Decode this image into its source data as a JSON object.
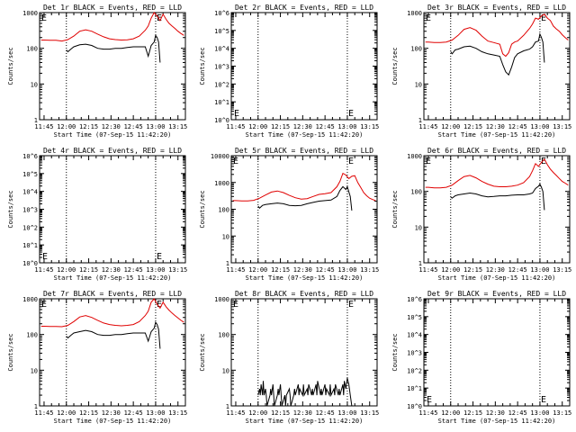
{
  "figure": {
    "xlabel": "Start Time (07-Sep-15 11:42:20)",
    "ylabel": "Counts/sec",
    "xticks": [
      "11:45",
      "12:00",
      "12:15",
      "12:30",
      "12:45",
      "13:00",
      "13:15"
    ],
    "xrange_min": [
      -3,
      95
    ],
    "vlines_min": [
      15,
      75
    ],
    "e_marker": "E",
    "colors": {
      "events": "#000000",
      "lld": "#e00000"
    }
  },
  "chart_data": [
    {
      "type": "line",
      "title": "Det 1r BLACK = Events, RED = LLD",
      "log_scale": true,
      "ylim": [
        1,
        1000
      ],
      "ytick_labels": [
        "1",
        "10",
        "100",
        "1000"
      ],
      "grid": false,
      "series": [
        {
          "name": "LLD",
          "color": "#e00000",
          "x": [
            -2,
            0,
            4,
            8,
            12,
            16,
            20,
            24,
            28,
            32,
            36,
            40,
            44,
            48,
            52,
            56,
            60,
            64,
            68,
            70,
            72,
            74,
            76,
            78,
            80,
            82,
            84,
            86,
            88,
            90,
            92,
            94
          ],
          "y": [
            170,
            170,
            168,
            168,
            160,
            175,
            220,
            300,
            330,
            300,
            250,
            210,
            185,
            175,
            170,
            172,
            185,
            220,
            320,
            420,
            700,
            1000,
            800,
            600,
            900,
            650,
            500,
            420,
            360,
            300,
            260,
            230
          ]
        },
        {
          "name": "Events",
          "color": "#000000",
          "x": [
            15,
            16,
            18,
            20,
            24,
            28,
            32,
            36,
            40,
            44,
            48,
            52,
            56,
            60,
            64,
            68,
            70,
            72,
            74,
            75,
            76,
            77,
            78
          ],
          "y": [
            90,
            80,
            95,
            110,
            125,
            130,
            120,
            100,
            95,
            95,
            100,
            100,
            105,
            110,
            110,
            110,
            60,
            120,
            150,
            230,
            200,
            150,
            40
          ]
        }
      ]
    },
    {
      "type": "line",
      "title": "Det 2r BLACK = Events, RED = LLD",
      "log_scale": true,
      "ylim": [
        1,
        1000000
      ],
      "ytick_labels": [
        "10^0",
        "10^1",
        "10^2",
        "10^3",
        "10^4",
        "10^5",
        "10^6"
      ],
      "grid": false,
      "series": []
    },
    {
      "type": "line",
      "title": "Det 3r BLACK = Events, RED = LLD",
      "log_scale": true,
      "ylim": [
        1,
        1000
      ],
      "ytick_labels": [
        "1",
        "10",
        "100",
        "1000"
      ],
      "grid": false,
      "series": [
        {
          "name": "LLD",
          "color": "#e00000",
          "x": [
            -2,
            0,
            4,
            8,
            12,
            16,
            20,
            24,
            28,
            32,
            36,
            40,
            44,
            48,
            50,
            52,
            54,
            56,
            58,
            60,
            64,
            68,
            70,
            72,
            74,
            76,
            78,
            80,
            82,
            84,
            86,
            88,
            90,
            92,
            94
          ],
          "y": [
            150,
            150,
            145,
            145,
            150,
            170,
            230,
            340,
            380,
            320,
            220,
            160,
            145,
            130,
            70,
            60,
            75,
            130,
            150,
            160,
            230,
            360,
            480,
            700,
            650,
            800,
            900,
            700,
            600,
            420,
            350,
            300,
            240,
            200,
            170
          ]
        },
        {
          "name": "Events",
          "color": "#000000",
          "x": [
            15,
            16,
            18,
            20,
            24,
            28,
            32,
            36,
            40,
            44,
            48,
            50,
            52,
            54,
            56,
            58,
            60,
            64,
            68,
            70,
            72,
            74,
            75,
            76,
            77,
            78
          ],
          "y": [
            80,
            70,
            90,
            95,
            110,
            115,
            100,
            80,
            70,
            65,
            60,
            35,
            22,
            18,
            30,
            55,
            70,
            85,
            95,
            110,
            150,
            160,
            250,
            200,
            150,
            40
          ]
        }
      ]
    },
    {
      "type": "line",
      "title": "Det 4r BLACK = Events, RED = LLD",
      "log_scale": true,
      "ylim": [
        1,
        1000000
      ],
      "ytick_labels": [
        "10^0",
        "10^1",
        "10^2",
        "10^3",
        "10^4",
        "10^5",
        "10^6"
      ],
      "grid": false,
      "series": []
    },
    {
      "type": "line",
      "title": "Det 5r BLACK = Events, RED = LLD",
      "log_scale": true,
      "ylim": [
        1,
        10000
      ],
      "ytick_labels": [
        "1",
        "10",
        "100",
        "1000",
        "10000"
      ],
      "grid": false,
      "series": [
        {
          "name": "LLD",
          "color": "#e00000",
          "x": [
            -2,
            0,
            4,
            8,
            12,
            16,
            20,
            24,
            28,
            32,
            36,
            40,
            44,
            48,
            52,
            56,
            60,
            64,
            68,
            70,
            72,
            74,
            76,
            78,
            80,
            82,
            84,
            86,
            88,
            90,
            92,
            94
          ],
          "y": [
            210,
            210,
            205,
            205,
            215,
            260,
            340,
            440,
            480,
            420,
            330,
            270,
            240,
            250,
            300,
            360,
            380,
            420,
            700,
            1100,
            2200,
            1900,
            1400,
            1700,
            1800,
            1000,
            650,
            420,
            320,
            260,
            230,
            210
          ]
        },
        {
          "name": "Events",
          "color": "#000000",
          "x": [
            15,
            16,
            18,
            20,
            24,
            28,
            32,
            36,
            40,
            44,
            48,
            52,
            56,
            60,
            64,
            68,
            70,
            72,
            74,
            75,
            76,
            77,
            78
          ],
          "y": [
            130,
            110,
            140,
            150,
            160,
            170,
            160,
            140,
            135,
            140,
            160,
            180,
            200,
            210,
            220,
            300,
            500,
            700,
            550,
            700,
            450,
            300,
            90
          ]
        }
      ]
    },
    {
      "type": "line",
      "title": "Det 6r BLACK = Events, RED = LLD",
      "log_scale": true,
      "ylim": [
        1,
        1000
      ],
      "ytick_labels": [
        "1",
        "10",
        "100",
        "1000"
      ],
      "grid": false,
      "series": [
        {
          "name": "LLD",
          "color": "#e00000",
          "x": [
            -2,
            0,
            4,
            8,
            12,
            16,
            20,
            24,
            28,
            32,
            36,
            40,
            44,
            48,
            52,
            56,
            60,
            64,
            68,
            70,
            72,
            74,
            76,
            78,
            80,
            82,
            84,
            86,
            88,
            90,
            92,
            94
          ],
          "y": [
            130,
            130,
            125,
            125,
            130,
            150,
            200,
            260,
            280,
            240,
            190,
            160,
            140,
            135,
            135,
            140,
            150,
            175,
            260,
            380,
            600,
            500,
            650,
            800,
            560,
            420,
            340,
            280,
            230,
            190,
            170,
            150
          ]
        },
        {
          "name": "Events",
          "color": "#000000",
          "x": [
            15,
            16,
            18,
            20,
            24,
            28,
            32,
            36,
            40,
            44,
            48,
            52,
            56,
            60,
            64,
            68,
            70,
            72,
            74,
            75,
            76,
            77,
            78
          ],
          "y": [
            70,
            65,
            75,
            80,
            85,
            90,
            85,
            75,
            70,
            72,
            75,
            75,
            78,
            80,
            80,
            85,
            90,
            120,
            140,
            160,
            130,
            100,
            30
          ]
        }
      ]
    },
    {
      "type": "line",
      "title": "Det 7r BLACK = Events, RED = LLD",
      "log_scale": true,
      "ylim": [
        1,
        1000
      ],
      "ytick_labels": [
        "1",
        "10",
        "100",
        "1000"
      ],
      "grid": false,
      "series": [
        {
          "name": "LLD",
          "color": "#e00000",
          "x": [
            -2,
            0,
            4,
            8,
            12,
            16,
            20,
            24,
            28,
            32,
            36,
            40,
            44,
            48,
            52,
            56,
            60,
            64,
            68,
            70,
            72,
            74,
            76,
            78,
            80,
            82,
            84,
            86,
            88,
            90,
            92,
            94
          ],
          "y": [
            170,
            170,
            168,
            168,
            165,
            180,
            230,
            310,
            340,
            300,
            250,
            210,
            190,
            180,
            175,
            180,
            190,
            230,
            340,
            450,
            800,
            1000,
            700,
            550,
            800,
            600,
            480,
            400,
            340,
            290,
            250,
            220
          ]
        },
        {
          "name": "Events",
          "color": "#000000",
          "x": [
            15,
            16,
            18,
            20,
            24,
            28,
            32,
            36,
            40,
            44,
            48,
            52,
            56,
            60,
            64,
            68,
            70,
            72,
            74,
            75,
            76,
            77,
            78
          ],
          "y": [
            90,
            80,
            95,
            110,
            120,
            130,
            120,
            100,
            95,
            95,
            100,
            100,
            105,
            110,
            110,
            110,
            65,
            120,
            150,
            220,
            190,
            140,
            40
          ]
        }
      ]
    },
    {
      "type": "line",
      "title": "Det 8r BLACK = Events, RED = LLD",
      "log_scale": true,
      "ylim": [
        1,
        1000
      ],
      "ytick_labels": [
        "1",
        "10",
        "100",
        "1000"
      ],
      "grid": false,
      "series": [
        {
          "name": "Events",
          "color": "#000000",
          "x": [
            15,
            16,
            16.5,
            17,
            18,
            18.5,
            19,
            20,
            20.5,
            21,
            23,
            23.5,
            24,
            25,
            25.5,
            26,
            28,
            28.5,
            29,
            30,
            30.5,
            31,
            33,
            33.5,
            34,
            36,
            36.5,
            37,
            39,
            39.5,
            40,
            42,
            42.5,
            43,
            45,
            45.5,
            46,
            48,
            48.5,
            49,
            51,
            51.5,
            52,
            54,
            54.5,
            55,
            57,
            57.5,
            58,
            60,
            60.5,
            61,
            63,
            63.5,
            64,
            66,
            66.5,
            67,
            69,
            69.5,
            70,
            72,
            72.5,
            73,
            74,
            75,
            76,
            77,
            78
          ],
          "y": [
            2,
            3,
            2,
            4,
            2,
            5,
            2,
            3,
            2,
            1,
            2,
            3,
            2,
            4,
            2,
            1,
            2,
            3,
            2,
            4,
            2,
            1,
            2,
            1,
            2,
            3,
            2,
            1,
            2,
            3,
            2,
            4,
            2,
            3,
            2,
            4,
            2,
            3,
            2,
            4,
            2,
            3,
            2,
            4,
            2,
            5,
            2,
            3,
            2,
            4,
            2,
            3,
            2,
            4,
            2,
            3,
            2,
            4,
            2,
            3,
            2,
            4,
            2,
            5,
            3,
            6,
            4,
            2,
            1
          ]
        }
      ]
    },
    {
      "type": "line",
      "title": "Det 9r BLACK = Events, RED = LLD",
      "log_scale": true,
      "ylim": [
        1,
        1000000
      ],
      "ytick_labels": [
        "10^0",
        "10^1",
        "10^2",
        "10^3",
        "10^4",
        "10^5",
        "10^6"
      ],
      "grid": false,
      "series": []
    }
  ]
}
